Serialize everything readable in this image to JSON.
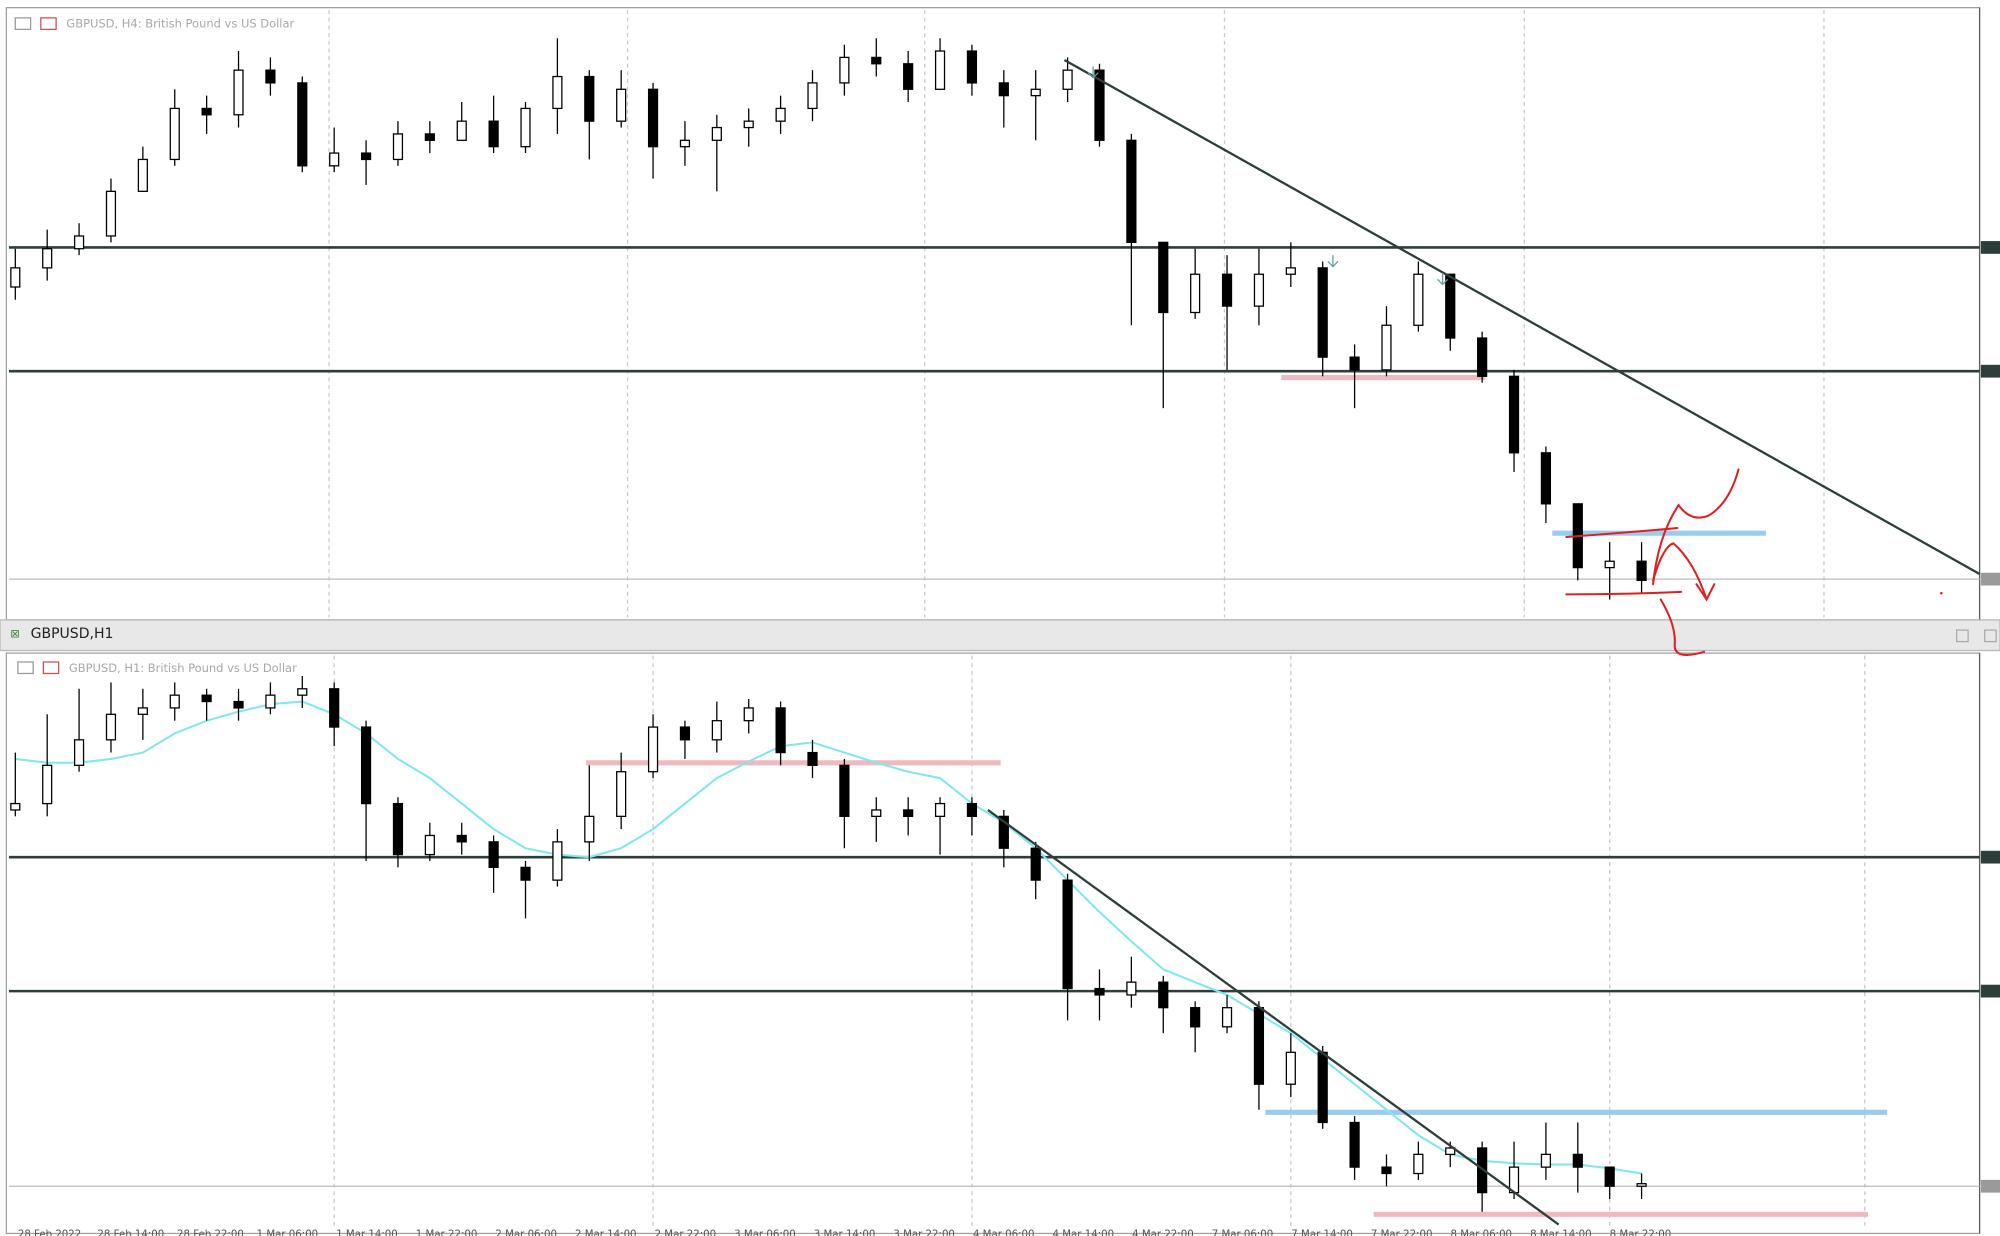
{
  "window_title": "GBPUSD,H1",
  "chart_data": [
    {
      "type": "candlestick",
      "title": "GBPUSD, H4: British Pound vs US Dollar",
      "ylim": [
        1.31,
        1.3577
      ],
      "candles": [
        [
          1.336,
          1.339,
          1.335,
          1.3375
        ],
        [
          1.3375,
          1.3405,
          1.3365,
          1.339
        ],
        [
          1.339,
          1.341,
          1.3385,
          1.34
        ],
        [
          1.34,
          1.3445,
          1.3395,
          1.3435
        ],
        [
          1.3435,
          1.347,
          1.3435,
          1.346
        ],
        [
          1.346,
          1.3515,
          1.3455,
          1.35
        ],
        [
          1.35,
          1.351,
          1.348,
          1.3495
        ],
        [
          1.3495,
          1.3545,
          1.3485,
          1.353
        ],
        [
          1.353,
          1.354,
          1.351,
          1.352
        ],
        [
          1.352,
          1.3525,
          1.345,
          1.3455
        ],
        [
          1.3455,
          1.3485,
          1.345,
          1.3465
        ],
        [
          1.3465,
          1.3475,
          1.344,
          1.346
        ],
        [
          1.346,
          1.349,
          1.3455,
          1.348
        ],
        [
          1.348,
          1.349,
          1.3465,
          1.3475
        ],
        [
          1.3475,
          1.3505,
          1.3475,
          1.349
        ],
        [
          1.349,
          1.351,
          1.3465,
          1.347
        ],
        [
          1.347,
          1.3505,
          1.3465,
          1.35
        ],
        [
          1.35,
          1.3555,
          1.348,
          1.3525
        ],
        [
          1.3525,
          1.353,
          1.346,
          1.349
        ],
        [
          1.349,
          1.353,
          1.3485,
          1.3515
        ],
        [
          1.3515,
          1.352,
          1.3445,
          1.347
        ],
        [
          1.347,
          1.349,
          1.3455,
          1.3475
        ],
        [
          1.3475,
          1.3495,
          1.3435,
          1.3485
        ],
        [
          1.3485,
          1.35,
          1.347,
          1.349
        ],
        [
          1.349,
          1.351,
          1.348,
          1.35
        ],
        [
          1.35,
          1.353,
          1.349,
          1.352
        ],
        [
          1.352,
          1.355,
          1.351,
          1.354
        ],
        [
          1.354,
          1.3555,
          1.3525,
          1.3535
        ],
        [
          1.3535,
          1.3545,
          1.3505,
          1.3515
        ],
        [
          1.3515,
          1.3555,
          1.3515,
          1.3545
        ],
        [
          1.3545,
          1.355,
          1.351,
          1.352
        ],
        [
          1.352,
          1.353,
          1.3485,
          1.351
        ],
        [
          1.351,
          1.353,
          1.3475,
          1.3515
        ],
        [
          1.3515,
          1.354,
          1.3505,
          1.353
        ],
        [
          1.353,
          1.3535,
          1.347,
          1.3475
        ],
        [
          1.3475,
          1.348,
          1.333,
          1.3395
        ],
        [
          1.3395,
          1.3395,
          1.3265,
          1.334
        ],
        [
          1.334,
          1.339,
          1.3335,
          1.337
        ],
        [
          1.337,
          1.3385,
          1.3295,
          1.3345
        ],
        [
          1.3345,
          1.339,
          1.333,
          1.337
        ],
        [
          1.337,
          1.3395,
          1.336,
          1.3375
        ],
        [
          1.3375,
          1.338,
          1.329,
          1.3305
        ],
        [
          1.3305,
          1.3315,
          1.3265,
          1.3295
        ],
        [
          1.3295,
          1.3345,
          1.329,
          1.333
        ],
        [
          1.333,
          1.338,
          1.3325,
          1.337
        ],
        [
          1.337,
          1.337,
          1.331,
          1.332
        ],
        [
          1.332,
          1.3325,
          1.3285,
          1.329
        ],
        [
          1.329,
          1.3295,
          1.3215,
          1.323
        ],
        [
          1.323,
          1.3235,
          1.3175,
          1.319
        ],
        [
          1.319,
          1.319,
          1.313,
          1.314
        ],
        [
          1.314,
          1.316,
          1.3115,
          1.3145
        ],
        [
          1.3145,
          1.316,
          1.312,
          1.313
        ]
      ],
      "levels": [
        1.3391,
        1.3294
      ],
      "current_price": 1.3131,
      "zones": [
        {
          "price": 1.3289,
          "from": 39.7,
          "to": 46.1,
          "color": "#f2b8c0"
        },
        {
          "price": 1.3167,
          "from": 48.2,
          "to": 54.9,
          "color": "#9ccbf0"
        }
      ],
      "trendline": [
        [
          32.9,
          1.3538
        ],
        [
          61.6,
          1.3135
        ]
      ]
    },
    {
      "type": "candlestick",
      "title": "GBPUSD, H1: British Pound vs US Dollar",
      "ylim": [
        1.3098,
        1.3551
      ],
      "candles": [
        [
          1.3428,
          1.3473,
          1.3423,
          1.3433
        ],
        [
          1.3433,
          1.3503,
          1.3423,
          1.3463
        ],
        [
          1.3463,
          1.3523,
          1.3458,
          1.3483
        ],
        [
          1.3483,
          1.3528,
          1.3473,
          1.3503
        ],
        [
          1.3503,
          1.3523,
          1.3483,
          1.3508
        ],
        [
          1.3508,
          1.3528,
          1.3498,
          1.3518
        ],
        [
          1.3518,
          1.3523,
          1.3498,
          1.3513
        ],
        [
          1.3513,
          1.3523,
          1.3498,
          1.3508
        ],
        [
          1.3508,
          1.3528,
          1.3503,
          1.3518
        ],
        [
          1.3518,
          1.3533,
          1.3508,
          1.3523
        ],
        [
          1.3523,
          1.3528,
          1.3478,
          1.3493
        ],
        [
          1.3493,
          1.3498,
          1.3388,
          1.3433
        ],
        [
          1.3433,
          1.3438,
          1.3383,
          1.3393
        ],
        [
          1.3393,
          1.3418,
          1.3388,
          1.3408
        ],
        [
          1.3408,
          1.3418,
          1.3393,
          1.3403
        ],
        [
          1.3403,
          1.3408,
          1.3363,
          1.3383
        ],
        [
          1.3383,
          1.3388,
          1.3343,
          1.3373
        ],
        [
          1.3373,
          1.3413,
          1.3368,
          1.3403
        ],
        [
          1.3403,
          1.3463,
          1.3388,
          1.3423
        ],
        [
          1.3423,
          1.3473,
          1.3413,
          1.3458
        ],
        [
          1.3458,
          1.3503,
          1.3453,
          1.3493
        ],
        [
          1.3493,
          1.3498,
          1.3468,
          1.3483
        ],
        [
          1.3483,
          1.3513,
          1.3473,
          1.3498
        ],
        [
          1.3498,
          1.3515,
          1.3488,
          1.3508
        ],
        [
          1.3508,
          1.3513,
          1.3463,
          1.3473
        ],
        [
          1.3473,
          1.3483,
          1.3453,
          1.3463
        ],
        [
          1.3463,
          1.3468,
          1.3398,
          1.3423
        ],
        [
          1.3423,
          1.3438,
          1.3403,
          1.3428
        ],
        [
          1.3428,
          1.3438,
          1.3408,
          1.3423
        ],
        [
          1.3423,
          1.3438,
          1.3393,
          1.3433
        ],
        [
          1.3433,
          1.3438,
          1.3408,
          1.3423
        ],
        [
          1.3423,
          1.3428,
          1.3383,
          1.3398
        ],
        [
          1.3398,
          1.3403,
          1.3358,
          1.3373
        ],
        [
          1.3373,
          1.3378,
          1.3263,
          1.3288
        ],
        [
          1.3288,
          1.3303,
          1.3263,
          1.3283
        ],
        [
          1.3283,
          1.3313,
          1.3273,
          1.3293
        ],
        [
          1.3293,
          1.3298,
          1.3253,
          1.3273
        ],
        [
          1.3273,
          1.3278,
          1.3238,
          1.3258
        ],
        [
          1.3258,
          1.3283,
          1.3253,
          1.3273
        ],
        [
          1.3273,
          1.3278,
          1.3193,
          1.3213
        ],
        [
          1.3213,
          1.3253,
          1.3203,
          1.3238
        ],
        [
          1.3238,
          1.3243,
          1.3178,
          1.3183
        ],
        [
          1.3183,
          1.3188,
          1.3138,
          1.3148
        ],
        [
          1.3148,
          1.3158,
          1.3133,
          1.3143
        ],
        [
          1.3143,
          1.3168,
          1.3138,
          1.3158
        ],
        [
          1.3158,
          1.3168,
          1.3148,
          1.3163
        ],
        [
          1.3163,
          1.3168,
          1.3113,
          1.3128
        ],
        [
          1.3128,
          1.3168,
          1.3123,
          1.3148
        ],
        [
          1.3148,
          1.3183,
          1.3138,
          1.3158
        ],
        [
          1.3158,
          1.3183,
          1.3128,
          1.3148
        ],
        [
          1.3148,
          1.3148,
          1.3123,
          1.3133
        ],
        [
          1.3133,
          1.3143,
          1.3123,
          1.3135
        ]
      ],
      "moving_average": {
        "color": "#7fe8ec",
        "values": [
          1.3468,
          1.3465,
          1.3465,
          1.3468,
          1.3473,
          1.3488,
          1.3498,
          1.3505,
          1.3511,
          1.3513,
          1.3503,
          1.3488,
          1.3468,
          1.3453,
          1.3433,
          1.3413,
          1.3398,
          1.3393,
          1.3391,
          1.3398,
          1.3413,
          1.3433,
          1.3453,
          1.3466,
          1.3478,
          1.3481,
          1.3473,
          1.3465,
          1.3458,
          1.3453,
          1.3433,
          1.3418,
          1.3398,
          1.3373,
          1.3348,
          1.3325,
          1.3303,
          1.3293,
          1.3283,
          1.3268,
          1.3253,
          1.3233,
          1.3213,
          1.3193,
          1.3173,
          1.3158,
          1.3153,
          1.3151,
          1.315,
          1.315,
          1.3147,
          1.3143
        ]
      },
      "levels": [
        1.3391,
        1.3286
      ],
      "current_price": 1.3133,
      "zones": [
        {
          "price": 1.3465,
          "from": 17.9,
          "to": 30.9,
          "color": "#f2b8c0"
        },
        {
          "price": 1.3191,
          "from": 39.2,
          "to": 58.7,
          "color": "#9ccbf0"
        },
        {
          "price": 1.3111,
          "from": 42.6,
          "to": 58.1,
          "color": "#f2b8c0"
        }
      ],
      "trendline": [
        [
          30.5,
          1.3428
        ],
        [
          48.4,
          1.3103
        ]
      ],
      "time_labels": [
        "28 Feb 2022",
        "28 Feb 14:00",
        "28 Feb 22:00",
        "1 Mar 06:00",
        "1 Mar 14:00",
        "1 Mar 22:00",
        "2 Mar 06:00",
        "2 Mar 14:00",
        "2 Mar 22:00",
        "3 Mar 06:00",
        "3 Mar 14:00",
        "3 Mar 22:00",
        "4 Mar 06:00",
        "4 Mar 14:00",
        "4 Mar 22:00",
        "7 Mar 06:00",
        "7 Mar 14:00",
        "7 Mar 22:00",
        "8 Mar 06:00",
        "8 Mar 14:00",
        "8 Mar 22:00"
      ]
    }
  ]
}
